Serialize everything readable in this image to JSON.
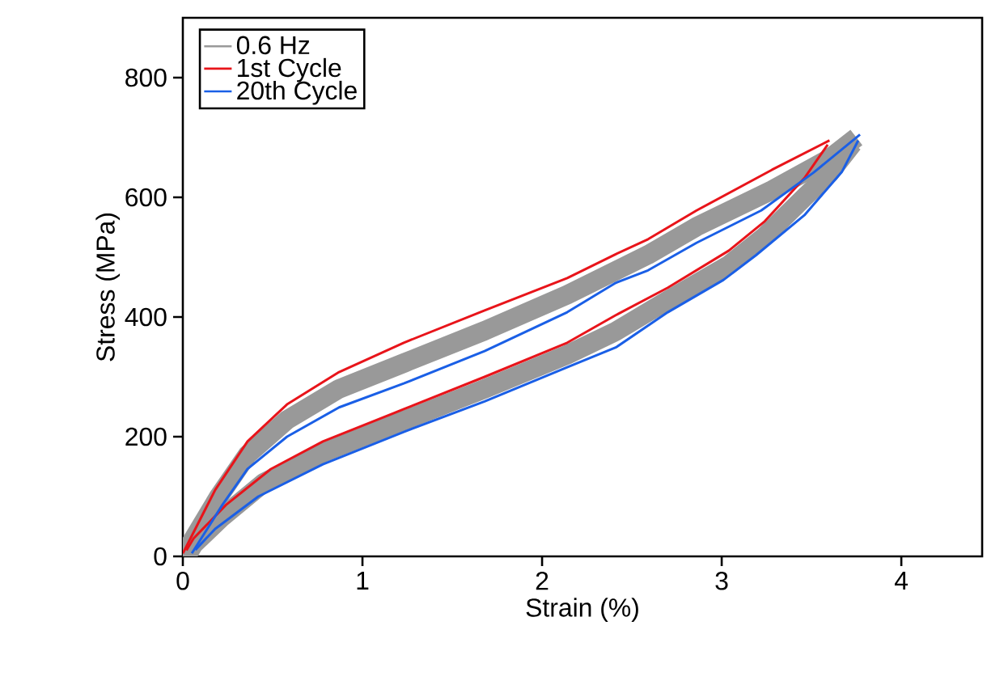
{
  "chart_data": {
    "type": "line",
    "xlabel": "Strain (%)",
    "ylabel": "Stress (MPa)",
    "xlim": [
      0,
      4.45
    ],
    "ylim": [
      0,
      900
    ],
    "xticks": [
      0,
      1,
      2,
      3,
      4
    ],
    "yticks": [
      0,
      200,
      400,
      600,
      800
    ],
    "grid": false,
    "legend": "top left",
    "marker": "none",
    "line_style": "solid",
    "series": [
      {
        "name": "0.6 Hz",
        "color": "#999999",
        "x": [
          0,
          0.2,
          0.36,
          0.58,
          0.87,
          1.23,
          1.68,
          2.14,
          2.59,
          2.86,
          3.28,
          3.6,
          3.75
        ],
        "values": [
          0,
          100,
          170,
          228,
          280,
          323,
          377,
          437,
          504,
          551,
          612,
          665,
          700
        ]
      },
      {
        "color": "#999999",
        "x": [
          0.03,
          0.06,
          0.22,
          0.45,
          0.78,
          1.23,
          1.68,
          2.14,
          2.41,
          2.7,
          3.04,
          3.24,
          3.46,
          3.6,
          3.73
        ],
        "values": [
          5,
          20,
          66,
          123,
          173,
          227,
          280,
          337,
          376,
          428,
          487,
          535,
          600,
          640,
          690
        ]
      },
      {
        "name": "1st Cycle",
        "color": "#e8141a",
        "x": [
          0,
          0.18,
          0.36,
          0.58,
          0.87,
          1.23,
          1.68,
          2.14,
          2.41,
          2.59,
          2.86,
          3.28,
          3.6
        ],
        "values": [
          5,
          111,
          192,
          254,
          308,
          357,
          411,
          465,
          505,
          530,
          578,
          646,
          695
        ]
      },
      {
        "color": "#e8141a",
        "x": [
          0.02,
          0.06,
          0.24,
          0.49,
          0.78,
          1.23,
          1.68,
          2.14,
          2.41,
          2.7,
          3.04,
          3.24,
          3.46,
          3.59
        ],
        "values": [
          10,
          30,
          86,
          146,
          192,
          246,
          300,
          357,
          403,
          449,
          511,
          560,
          632,
          688
        ]
      },
      {
        "name": "20th Cycle",
        "color": "#1a5fe6",
        "x": [
          0.05,
          0.22,
          0.36,
          0.58,
          0.87,
          1.23,
          1.68,
          2.14,
          2.41,
          2.59,
          2.86,
          3.22,
          3.51,
          3.77
        ],
        "values": [
          5,
          86,
          146,
          200,
          249,
          289,
          343,
          408,
          457,
          478,
          524,
          578,
          641,
          705
        ]
      },
      {
        "color": "#1a5fe6",
        "x": [
          0.07,
          0.18,
          0.42,
          0.78,
          1.23,
          1.68,
          2.14,
          2.41,
          2.7,
          3.01,
          3.19,
          3.46,
          3.67,
          3.76
        ],
        "values": [
          11,
          46,
          100,
          154,
          208,
          259,
          316,
          349,
          408,
          462,
          503,
          570,
          643,
          695
        ]
      }
    ]
  }
}
